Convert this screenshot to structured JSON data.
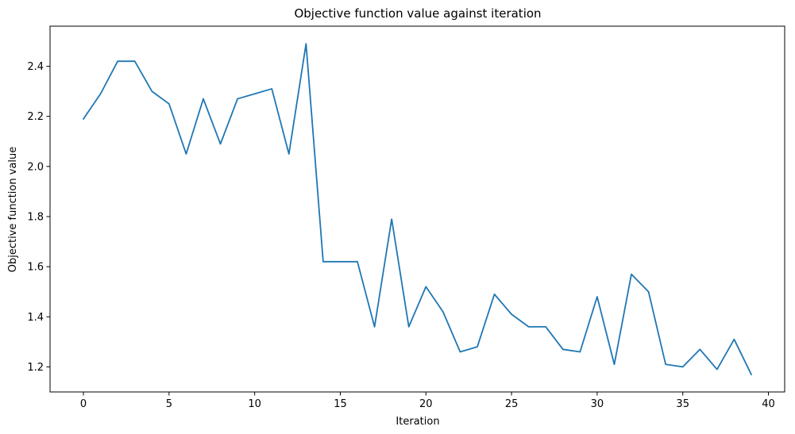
{
  "chart_data": {
    "type": "line",
    "title": "Objective function value against iteration",
    "xlabel": "Iteration",
    "ylabel": "Objective function value",
    "xlim": [
      -1.95,
      40.95
    ],
    "ylim": [
      1.1,
      2.56
    ],
    "xticks": [
      0,
      5,
      10,
      15,
      20,
      25,
      30,
      35,
      40
    ],
    "yticks": [
      1.2,
      1.4,
      1.6,
      1.8,
      2.0,
      2.2,
      2.4
    ],
    "ytick_labels": [
      "1.2",
      "1.4",
      "1.6",
      "1.8",
      "2.0",
      "2.2",
      "2.4"
    ],
    "grid": false,
    "line_color": "#1f77b4",
    "x": [
      0,
      1,
      2,
      3,
      4,
      5,
      6,
      7,
      8,
      9,
      10,
      11,
      12,
      13,
      14,
      15,
      16,
      17,
      18,
      19,
      20,
      21,
      22,
      23,
      24,
      25,
      26,
      27,
      28,
      29,
      30,
      31,
      32,
      33,
      34,
      35,
      36,
      37,
      38,
      39
    ],
    "values": [
      2.19,
      2.29,
      2.42,
      2.42,
      2.3,
      2.25,
      2.05,
      2.27,
      2.09,
      2.27,
      2.29,
      2.31,
      2.05,
      2.49,
      1.62,
      1.62,
      1.62,
      1.36,
      1.79,
      1.36,
      1.52,
      1.42,
      1.26,
      1.28,
      1.49,
      1.41,
      1.36,
      1.36,
      1.27,
      1.26,
      1.48,
      1.21,
      1.57,
      1.5,
      1.21,
      1.2,
      1.27,
      1.19,
      1.31,
      1.17
    ]
  }
}
